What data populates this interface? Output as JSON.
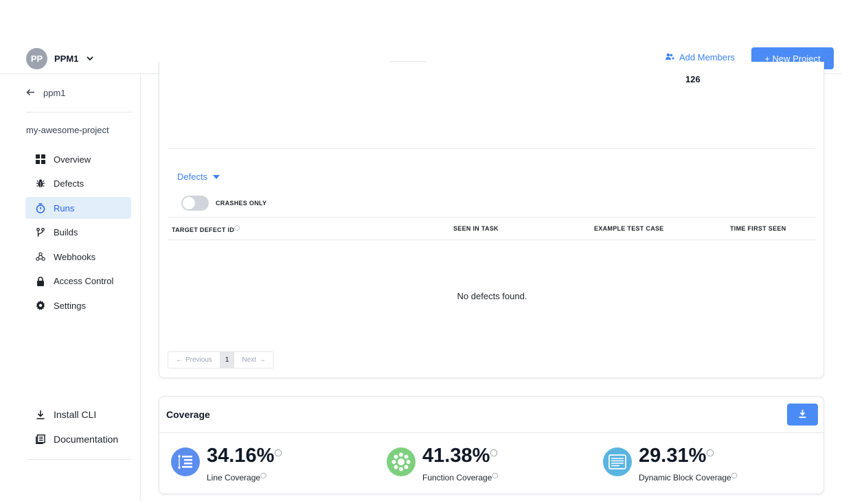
{
  "header": {
    "avatar_initials": "PP",
    "project_name": "PPM1",
    "add_members_label": "Add Members",
    "new_project_label": "+ New Project"
  },
  "sidebar": {
    "back_label": "ppm1",
    "project_label": "my-awesome-project",
    "items": [
      {
        "label": "Overview",
        "icon": "grid-icon"
      },
      {
        "label": "Defects",
        "icon": "bug-icon"
      },
      {
        "label": "Runs",
        "icon": "stopwatch-icon",
        "active": true
      },
      {
        "label": "Builds",
        "icon": "branch-icon"
      },
      {
        "label": "Webhooks",
        "icon": "webhook-icon"
      },
      {
        "label": "Access Control",
        "icon": "lock-icon"
      },
      {
        "label": "Settings",
        "icon": "gear-icon"
      }
    ],
    "bottom_items": [
      {
        "label": "Install CLI",
        "icon": "download-icon"
      },
      {
        "label": "Documentation",
        "icon": "book-icon"
      }
    ]
  },
  "runs_panel": {
    "stat_value": "126",
    "defects_dropdown": "Defects",
    "crashes_only_label": "CRASHES ONLY",
    "crashes_only_on": false,
    "columns": [
      "TARGET DEFECT ID",
      "SEEN IN TASK",
      "EXAMPLE TEST CASE",
      "TIME FIRST SEEN"
    ],
    "empty_message": "No defects found.",
    "pager": {
      "prev": "Previous",
      "current": "1",
      "next": "Next"
    }
  },
  "coverage": {
    "title": "Coverage",
    "metrics": [
      {
        "value": "34.16%",
        "label": "Line Coverage",
        "color": "#5b8def"
      },
      {
        "value": "41.38%",
        "label": "Function Coverage",
        "color": "#7ed07e"
      },
      {
        "value": "29.31%",
        "label": "Dynamic Block Coverage",
        "color": "#5ab4e0"
      }
    ]
  },
  "colors": {
    "accent": "#4b8bf5",
    "active_bg": "#e3eefb"
  }
}
